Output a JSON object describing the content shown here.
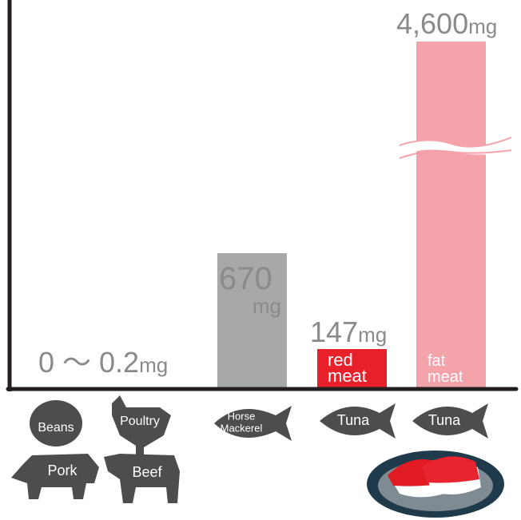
{
  "items": [
    {
      "value": "0 ～ 0.2",
      "unit": "mg",
      "foods": [
        "Beans",
        "Poultry",
        "Pork",
        "Beef"
      ]
    },
    {
      "value": "670",
      "unit": "mg",
      "foods": [
        [
          "Horse",
          "Mackerel"
        ]
      ]
    },
    {
      "value": "147",
      "unit": "mg",
      "bar_label": [
        "red",
        "meat"
      ],
      "foods": [
        "Tuna"
      ]
    },
    {
      "value": "4,600",
      "unit": "mg",
      "bar_label": [
        "fat",
        "meat"
      ],
      "foods": [
        "Tuna"
      ]
    }
  ]
}
